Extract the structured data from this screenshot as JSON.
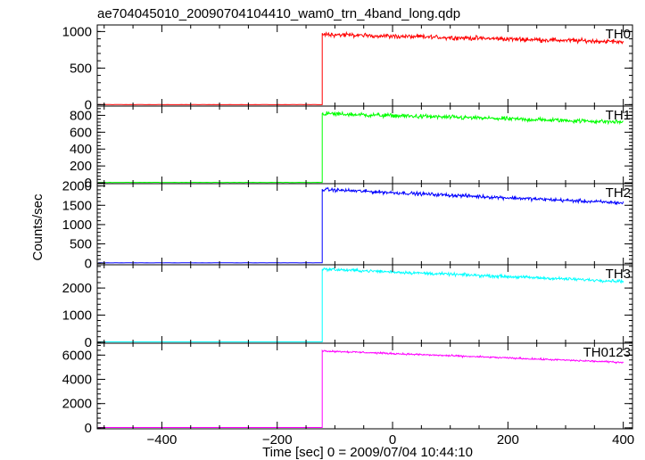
{
  "title": "ae704045010_20090704104410_wam0_trn_4band_long.qdp",
  "xlabel": "Time [sec] 0 = 2009/07/04 10:44:10",
  "ylabel": "Counts/sec",
  "colors": {
    "TH0": "#ff0000",
    "TH1": "#00ff00",
    "TH2": "#0000ff",
    "TH3": "#00ffff",
    "TH0123": "#ff00ff",
    "frame": "#000000"
  },
  "chart_data": {
    "type": "line",
    "xlim": [
      -512,
      416
    ],
    "xticks": [
      -400,
      -200,
      0,
      200,
      400
    ],
    "xtick_labels": [
      "−400",
      "−200",
      "0",
      "200",
      "400"
    ],
    "grid": false,
    "step_time": -122,
    "panels": [
      {
        "name": "TH0",
        "ylim": [
          -20,
          1090
        ],
        "yticks": [
          0,
          500,
          1000
        ],
        "ytick_labels": [
          "0",
          "500",
          "1000"
        ],
        "pre_level": 0,
        "post_start": 960,
        "post_end": 860,
        "noise": 30
      },
      {
        "name": "TH1",
        "ylim": [
          -10,
          910
        ],
        "yticks": [
          0,
          200,
          400,
          600,
          800
        ],
        "ytick_labels": [
          "0",
          "200",
          "400",
          "600",
          "800"
        ],
        "pre_level": 5,
        "post_start": 820,
        "post_end": 720,
        "noise": 25
      },
      {
        "name": "TH2",
        "ylim": [
          -40,
          2060
        ],
        "yticks": [
          0,
          500,
          1000,
          1500,
          2000
        ],
        "ytick_labels": [
          "0",
          "500",
          "1000",
          "1500",
          "2000"
        ],
        "pre_level": 10,
        "post_start": 1910,
        "post_end": 1560,
        "noise": 45
      },
      {
        "name": "TH3",
        "ylim": [
          -40,
          2860
        ],
        "yticks": [
          0,
          1000,
          2000
        ],
        "ytick_labels": [
          "0",
          "1000",
          "2000"
        ],
        "pre_level": 10,
        "post_start": 2700,
        "post_end": 2250,
        "noise": 55
      },
      {
        "name": "TH0123",
        "ylim": [
          -80,
          6980
        ],
        "yticks": [
          0,
          2000,
          4000,
          6000
        ],
        "ytick_labels": [
          "0",
          "2000",
          "4000",
          "6000"
        ],
        "pre_level": 30,
        "post_start": 6350,
        "post_end": 5400,
        "noise": 70
      }
    ]
  }
}
